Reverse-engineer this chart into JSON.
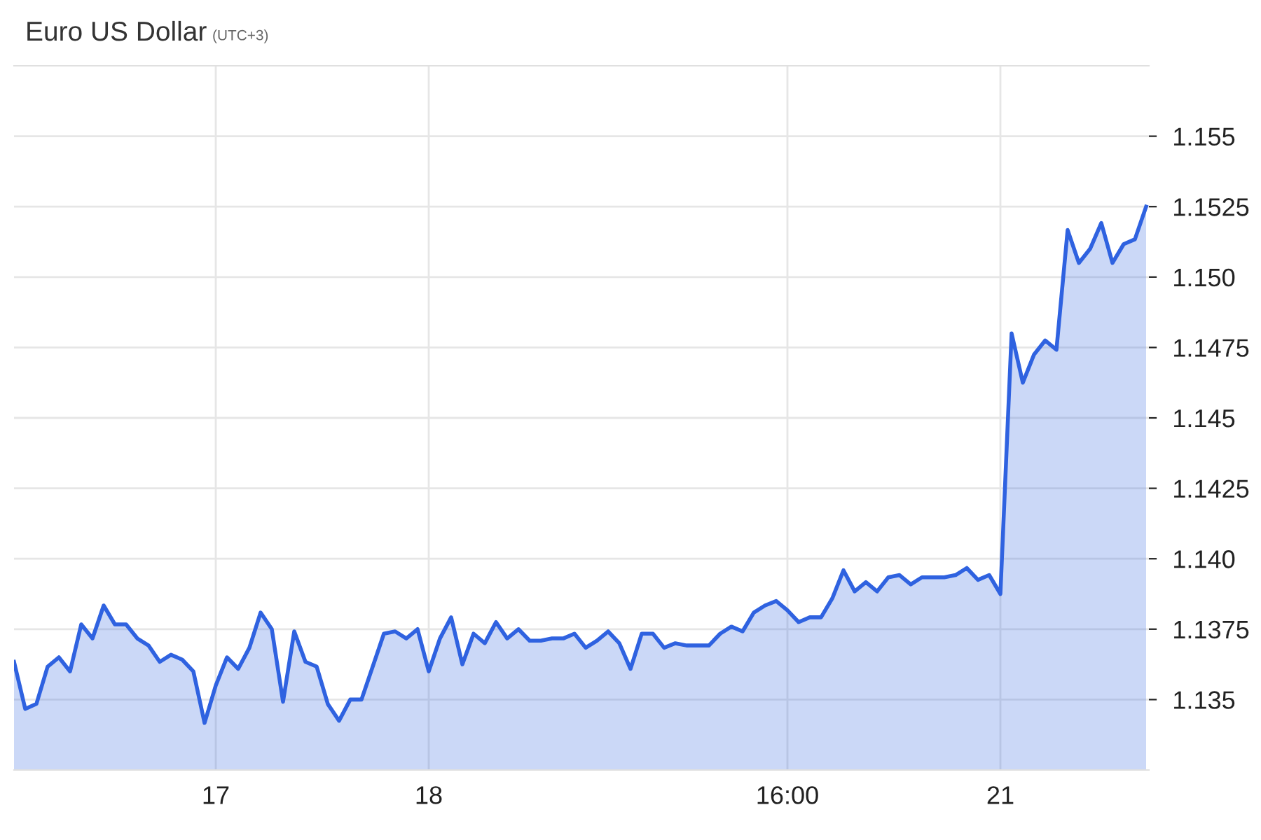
{
  "chart_data": {
    "type": "area",
    "title": "Euro US Dollar",
    "subtitle": "(UTC+3)",
    "categories": [
      null,
      null,
      null,
      null,
      null,
      null,
      null,
      null,
      null,
      null,
      null,
      null,
      null,
      null,
      null,
      null,
      null,
      null,
      "17",
      null,
      null,
      null,
      null,
      null,
      null,
      null,
      null,
      null,
      null,
      null,
      null,
      null,
      null,
      null,
      null,
      null,
      null,
      "18",
      null,
      null,
      null,
      null,
      null,
      null,
      null,
      null,
      null,
      null,
      null,
      null,
      null,
      null,
      null,
      null,
      null,
      null,
      null,
      null,
      null,
      null,
      null,
      null,
      null,
      null,
      null,
      null,
      null,
      null,
      null,
      "16:00",
      null,
      null,
      null,
      null,
      null,
      null,
      null,
      null,
      null,
      null,
      null,
      null,
      null,
      null,
      null,
      null,
      null,
      null,
      "21",
      null,
      null,
      null,
      null,
      null,
      null,
      null,
      null,
      null,
      null,
      null,
      null,
      null
    ],
    "series": [
      {
        "color": "#2f62e0",
        "values": [
          1.13634,
          1.13467,
          1.13485,
          1.13617,
          1.1365,
          1.136,
          1.13767,
          1.13717,
          1.13834,
          1.13767,
          1.13767,
          1.13717,
          1.13692,
          1.13634,
          1.13659,
          1.13642,
          1.136,
          1.13417,
          1.1355,
          1.1365,
          1.13609,
          1.13684,
          1.13809,
          1.1375,
          1.13492,
          1.13742,
          1.13634,
          1.13617,
          1.13484,
          1.13425,
          1.135,
          1.135,
          1.13617,
          1.13734,
          1.13742,
          1.13717,
          1.1375,
          1.136,
          1.13717,
          1.13792,
          1.13625,
          1.13734,
          1.137,
          1.13775,
          1.13717,
          1.1375,
          1.13709,
          1.13709,
          1.13717,
          1.13717,
          1.13734,
          1.13684,
          1.13709,
          1.13742,
          1.137,
          1.13609,
          1.13734,
          1.13734,
          1.13684,
          1.137,
          1.13692,
          1.13692,
          1.13692,
          1.13734,
          1.13759,
          1.13742,
          1.13809,
          1.13834,
          1.1385,
          1.13817,
          1.13775,
          1.13792,
          1.13792,
          1.13859,
          1.13959,
          1.13884,
          1.13917,
          1.13884,
          1.13934,
          1.13942,
          1.13909,
          1.13934,
          1.13934,
          1.13934,
          1.13942,
          1.13967,
          1.13925,
          1.13942,
          1.13875,
          1.148,
          1.14625,
          1.14725,
          1.14775,
          1.14742,
          1.15167,
          1.1505,
          1.151,
          1.15192,
          1.1505,
          1.15117,
          1.15134,
          1.1525
        ]
      }
    ],
    "ylim": [
      1.1325,
      1.1575
    ],
    "yticks": [
      1.135,
      1.1375,
      {
        "value": 1.14,
        "label": "1.140"
      },
      1.1425,
      1.145,
      1.1475,
      {
        "value": 1.15,
        "label": "1.150"
      },
      1.1525,
      1.155
    ],
    "grid": true
  }
}
